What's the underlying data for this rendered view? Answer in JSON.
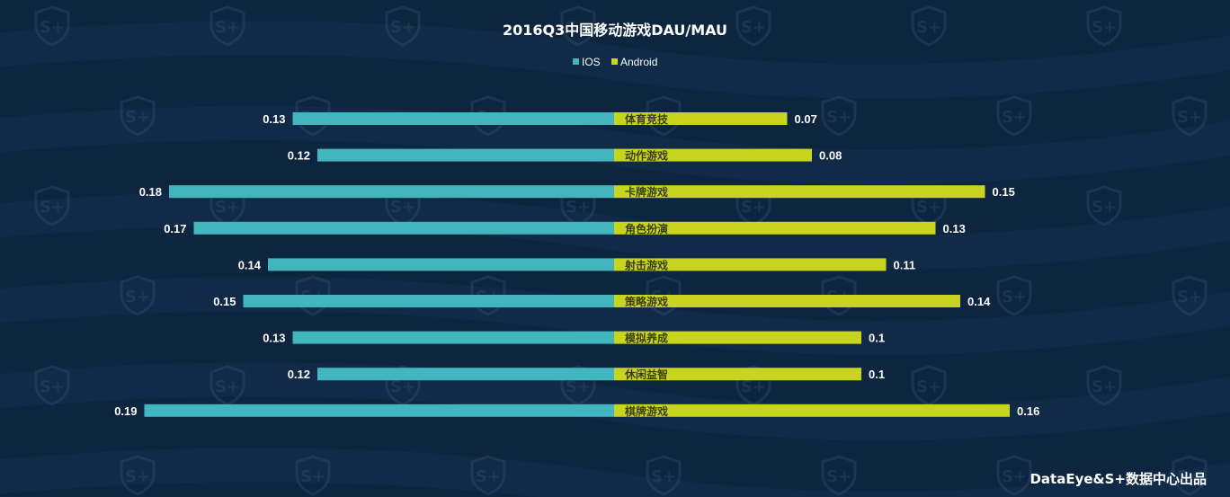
{
  "chart_data": {
    "type": "bar",
    "orientation": "horizontal-butterfly",
    "title": "2016Q3中国移动游戏DAU/MAU",
    "categories": [
      "体育竞技",
      "动作游戏",
      "卡牌游戏",
      "角色扮演",
      "射击游戏",
      "策略游戏",
      "模拟养成",
      "休闲益智",
      "棋牌游戏"
    ],
    "series": [
      {
        "name": "IOS",
        "color": "#41b6be",
        "values": [
          0.13,
          0.12,
          0.18,
          0.17,
          0.14,
          0.15,
          0.13,
          0.12,
          0.19
        ]
      },
      {
        "name": "Android",
        "color": "#c9d41f",
        "values": [
          0.07,
          0.08,
          0.15,
          0.13,
          0.11,
          0.14,
          0.1,
          0.1,
          0.16
        ]
      }
    ],
    "value_labels": {
      "IOS": [
        "0.13",
        "0.12",
        "0.18",
        "0.17",
        "0.14",
        "0.15",
        "0.13",
        "0.12",
        "0.19"
      ],
      "Android": [
        "0.07",
        "0.08",
        "0.15",
        "0.13",
        "0.11",
        "0.14",
        "0.1",
        "0.1",
        "0.16"
      ]
    },
    "xlabel": "",
    "ylabel": "",
    "xlim": [
      0,
      0.2
    ],
    "grid": false,
    "legend": "top-center"
  },
  "footer": {
    "credit": "DataEye&S+数据中心出品"
  },
  "watermark": {
    "text": "S+"
  },
  "colors": {
    "background": "#0e2540",
    "ios": "#41b6be",
    "android": "#c9d41f"
  }
}
